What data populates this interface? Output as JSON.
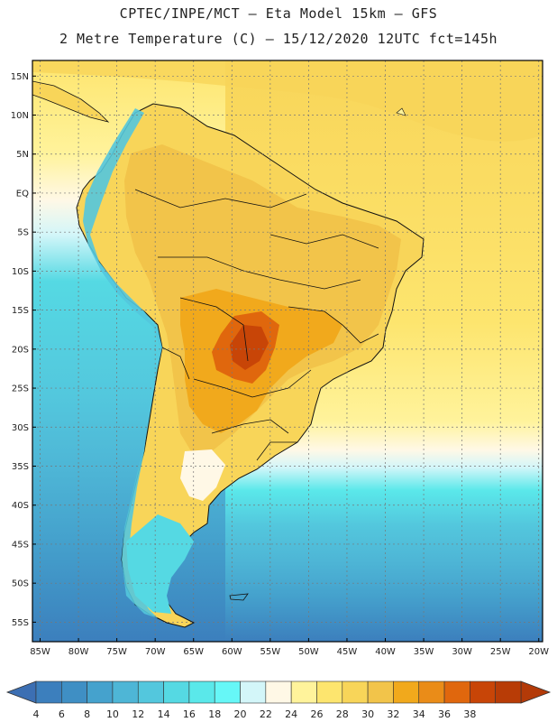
{
  "header": {
    "title_line1": "CPTEC/INPE/MCT –  Eta Model 15km – GFS",
    "title_line2": "2 Metre Temperature (C) – 15/12/2020 12UTC fct=145h"
  },
  "map": {
    "lat_labels": [
      "15N",
      "10N",
      "5N",
      "EQ",
      "5S",
      "10S",
      "15S",
      "20S",
      "25S",
      "30S",
      "35S",
      "40S",
      "45S",
      "50S",
      "55S"
    ],
    "lat_values": [
      15,
      10,
      5,
      0,
      -5,
      -10,
      -15,
      -20,
      -25,
      -30,
      -35,
      -40,
      -45,
      -50,
      -55
    ],
    "lon_labels": [
      "85W",
      "80W",
      "75W",
      "70W",
      "65W",
      "60W",
      "55W",
      "50W",
      "45W",
      "40W",
      "35W",
      "30W",
      "25W",
      "20W"
    ],
    "lon_values": [
      -85,
      -80,
      -75,
      -70,
      -65,
      -60,
      -55,
      -50,
      -45,
      -40,
      -35,
      -30,
      -25,
      -20
    ],
    "lat_range": [
      -57.5,
      17
    ],
    "lon_range": [
      -86,
      -19.5
    ]
  },
  "legend": {
    "values": [
      "4",
      "6",
      "8",
      "10",
      "12",
      "14",
      "16",
      "18",
      "20",
      "22",
      "24",
      "26",
      "28",
      "30",
      "32",
      "34",
      "36",
      "38"
    ],
    "colors": [
      "#3c7fbd",
      "#3f8fc4",
      "#45a2cd",
      "#4eb6d6",
      "#53c7dd",
      "#55d9e3",
      "#5ae8ea",
      "#66f7f7",
      "#d3f6f9",
      "#fff8e6",
      "#fff39b",
      "#fde56e",
      "#f8d559",
      "#f2c44a",
      "#f1a91c",
      "#ea8c18",
      "#e0670d",
      "#c84507",
      "#b83c06"
    ],
    "low_color": "#3c6fb3",
    "high_color": "#b33a08"
  }
}
